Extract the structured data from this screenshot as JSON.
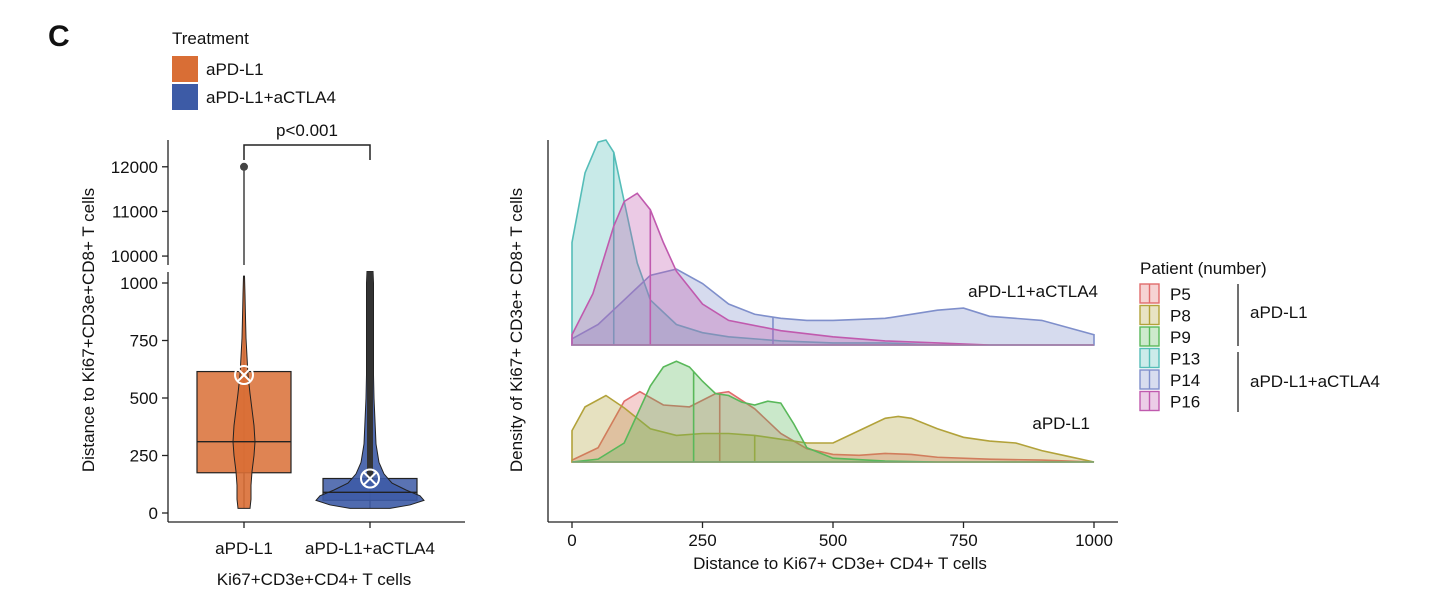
{
  "panel_label": "C",
  "legend_treatment": {
    "title": "Treatment",
    "items": [
      {
        "label": "aPD-L1",
        "color": "#D96E35"
      },
      {
        "label": "aPD-L1+aCTLA4",
        "color": "#3D5BA6"
      }
    ]
  },
  "legend_patient": {
    "title": "Patient (number)",
    "items": [
      {
        "label": "P5",
        "color": "#E06C6C"
      },
      {
        "label": "P8",
        "color": "#B2A23A"
      },
      {
        "label": "P9",
        "color": "#59B85A"
      },
      {
        "label": "P13",
        "color": "#55BDB8"
      },
      {
        "label": "P14",
        "color": "#7F8FCB"
      },
      {
        "label": "P16",
        "color": "#C05AAE"
      }
    ],
    "groups": [
      {
        "label": "aPD-L1",
        "members": [
          "P5",
          "P8",
          "P9"
        ]
      },
      {
        "label": "aPD-L1+aCTLA4",
        "members": [
          "P13",
          "P14",
          "P16"
        ]
      }
    ]
  },
  "chart_data": [
    {
      "type": "box",
      "subtype": "box+violin with broken y-axis",
      "xlabel": "Ki67+CD3e+CD4+ T cells",
      "ylabel": "Distance to Ki67+CD3e+CD8+  T cells",
      "categories": [
        "aPD-L1",
        "aPD-L1+aCTLA4"
      ],
      "axis_break": {
        "lower_range": [
          0,
          1050
        ],
        "upper_range": [
          9800,
          12600
        ]
      },
      "yticks_lower": [
        0,
        250,
        500,
        750,
        1000
      ],
      "yticks_upper": [
        10000,
        11000,
        12000
      ],
      "boxes": [
        {
          "group": "aPD-L1",
          "q1": 175,
          "median": 310,
          "q3": 615,
          "whisker_low": 20,
          "whisker_high": 1030,
          "mean": 600,
          "outliers": [
            12000
          ]
        },
        {
          "group": "aPD-L1+aCTLA4",
          "q1": 55,
          "median": 90,
          "q3": 150,
          "whisker_low": 20,
          "whisker_high": 1050,
          "mean": 150,
          "outliers": []
        }
      ],
      "significance": {
        "label": "p<0.001",
        "between": [
          "aPD-L1",
          "aPD-L1+aCTLA4"
        ]
      }
    },
    {
      "type": "area",
      "subtype": "ridgeline density",
      "xlabel": "Distance to Ki67+ CD3e+ CD4+ T cells",
      "ylabel": "Density of Ki67+ CD3e+ CD8+  T cells",
      "xlim": [
        0,
        1000
      ],
      "xticks": [
        0,
        250,
        500,
        750,
        1000
      ],
      "ridges": [
        {
          "label": "aPD-L1+aCTLA4",
          "series": [
            {
              "name": "P13",
              "x": [
                0,
                25,
                50,
                65,
                80,
                100,
                125,
                150,
                200,
                250,
                300,
                400,
                500,
                600,
                700,
                800,
                900,
                1000
              ],
              "y": [
                0.5,
                0.84,
                0.99,
                1.0,
                0.94,
                0.7,
                0.4,
                0.22,
                0.1,
                0.06,
                0.04,
                0.02,
                0.01,
                0.01,
                0.0,
                0.0,
                0.0,
                0.0
              ],
              "median": 80
            },
            {
              "name": "P14",
              "x": [
                0,
                50,
                100,
                150,
                200,
                250,
                300,
                350,
                400,
                450,
                500,
                600,
                700,
                750,
                800,
                900,
                1000
              ],
              "y": [
                0.03,
                0.1,
                0.22,
                0.34,
                0.37,
                0.3,
                0.2,
                0.15,
                0.13,
                0.12,
                0.12,
                0.13,
                0.17,
                0.18,
                0.14,
                0.12,
                0.05
              ],
              "median": 385
            },
            {
              "name": "P16",
              "x": [
                0,
                40,
                80,
                100,
                125,
                150,
                175,
                200,
                250,
                300,
                400,
                500,
                600,
                700,
                800,
                900,
                1000
              ],
              "y": [
                0.05,
                0.25,
                0.58,
                0.7,
                0.74,
                0.66,
                0.5,
                0.36,
                0.2,
                0.12,
                0.07,
                0.04,
                0.02,
                0.01,
                0.0,
                0.0,
                0.0
              ],
              "median": 150
            }
          ]
        },
        {
          "label": "aPD-L1",
          "series": [
            {
              "name": "P5",
              "x": [
                0,
                50,
                100,
                130,
                175,
                225,
                275,
                300,
                350,
                400,
                450,
                500,
                550,
                600,
                650,
                700,
                800,
                900,
                1000
              ],
              "y": [
                0.02,
                0.15,
                0.64,
                0.74,
                0.6,
                0.58,
                0.72,
                0.74,
                0.56,
                0.3,
                0.14,
                0.08,
                0.07,
                0.09,
                0.08,
                0.05,
                0.03,
                0.02,
                0.0
              ],
              "median": 283
            },
            {
              "name": "P8",
              "x": [
                0,
                25,
                65,
                100,
                150,
                200,
                250,
                300,
                350,
                400,
                450,
                500,
                550,
                600,
                625,
                650,
                700,
                750,
                800,
                850,
                900,
                950,
                1000
              ],
              "y": [
                0.33,
                0.58,
                0.7,
                0.57,
                0.35,
                0.28,
                0.3,
                0.3,
                0.28,
                0.24,
                0.2,
                0.2,
                0.33,
                0.46,
                0.48,
                0.46,
                0.35,
                0.26,
                0.22,
                0.2,
                0.12,
                0.06,
                0.0
              ],
              "median": 350
            },
            {
              "name": "P9",
              "x": [
                0,
                50,
                100,
                150,
                175,
                200,
                225,
                250,
                275,
                300,
                325,
                350,
                375,
                400,
                425,
                450,
                500,
                600,
                700,
                800,
                1000
              ],
              "y": [
                0.0,
                0.03,
                0.2,
                0.8,
                1.0,
                1.06,
                1.0,
                0.85,
                0.72,
                0.7,
                0.63,
                0.6,
                0.64,
                0.62,
                0.4,
                0.15,
                0.04,
                0.01,
                0.0,
                0.0,
                0.0
              ],
              "median": 233
            }
          ]
        }
      ]
    }
  ]
}
